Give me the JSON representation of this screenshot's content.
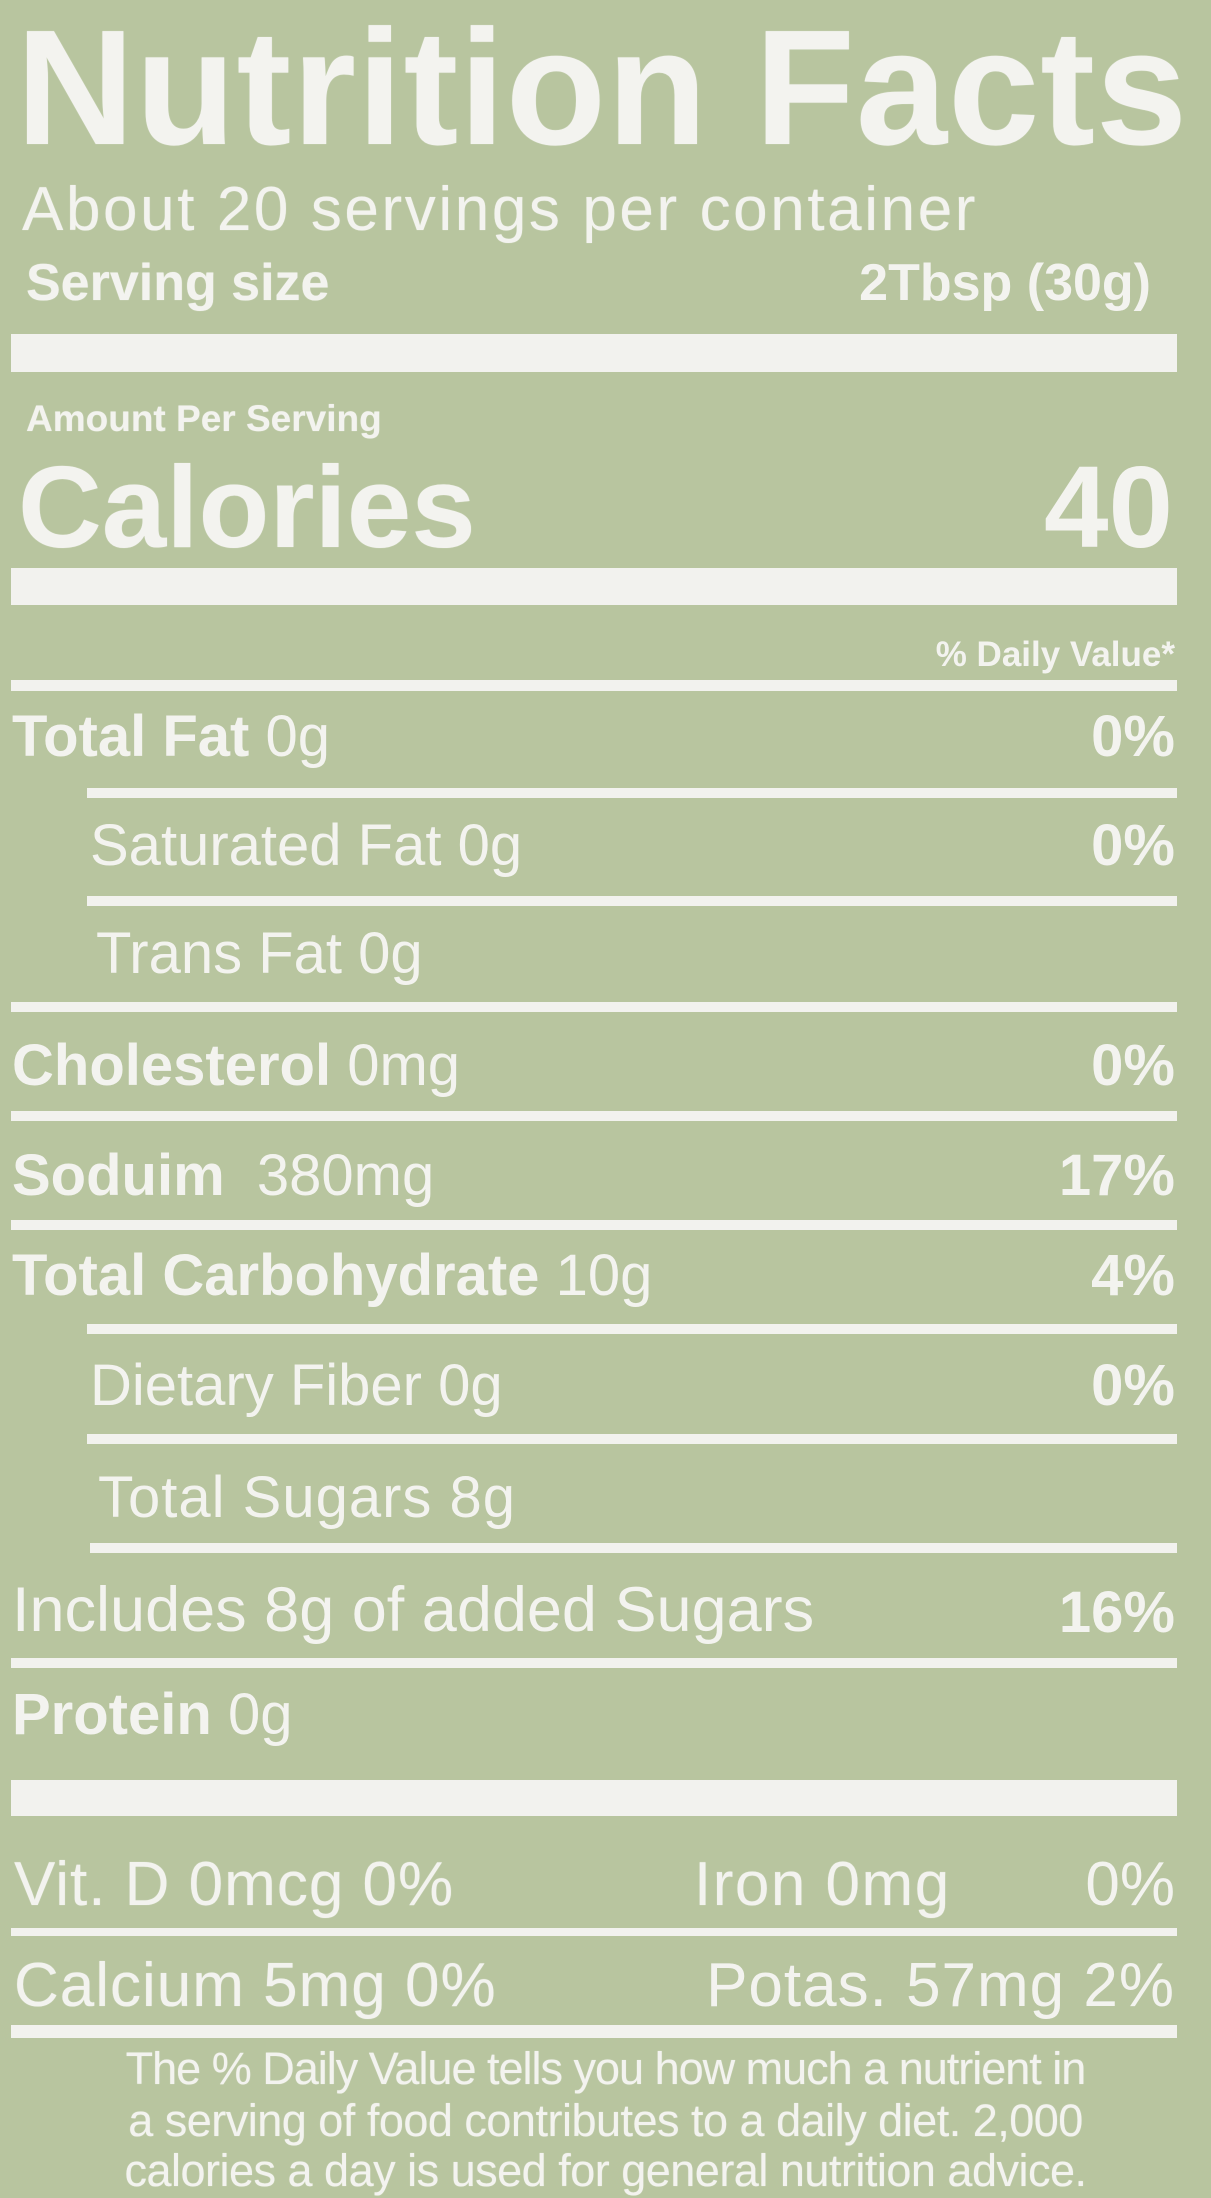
{
  "label": {
    "title": "Nutrition Facts",
    "servings_per_container": "About 20 servings per container",
    "serving_size_label": "Serving size",
    "serving_size_value": "2Tbsp (30g)",
    "amount_per_serving": "Amount Per Serving",
    "calories_label": "Calories",
    "calories_value": "40",
    "daily_value_header": "% Daily Value*",
    "nutrients": [
      {
        "name": "Total Fat",
        "amount": "0g",
        "dv": "0%"
      },
      {
        "name": "Saturated Fat",
        "amount": "0g",
        "dv": "0%"
      },
      {
        "name": "Trans Fat",
        "amount": "0g",
        "dv": ""
      },
      {
        "name": "Cholesterol",
        "amount": "0mg",
        "dv": "0%"
      },
      {
        "name": "Soduim",
        "amount": "380mg",
        "dv": "17%"
      },
      {
        "name": "Total Carbohydrate",
        "amount": "10g",
        "dv": "4%"
      },
      {
        "name": "Dietary Fiber",
        "amount": "0g",
        "dv": "0%"
      },
      {
        "name": "Total Sugars",
        "amount": "8g",
        "dv": ""
      },
      {
        "name": "Includes 8g of added Sugars",
        "amount": "",
        "dv": "16%"
      },
      {
        "name": "Protein",
        "amount": "0g",
        "dv": ""
      }
    ],
    "vitamins": {
      "vit_d": "Vit. D 0mcg 0%",
      "iron": "Iron 0mg",
      "iron_dv": "0%",
      "calcium": "Calcium 5mg 0%",
      "potassium": "Potas. 57mg 2%"
    },
    "footnote": [
      "The % Daily Value tells you how much a nutrient in",
      "a serving of food contributes to a daily diet. 2,000",
      "calories a day is used for general nutrition advice."
    ]
  },
  "colors": {
    "background": "#b8c59f",
    "text": "#f3f3ef"
  }
}
